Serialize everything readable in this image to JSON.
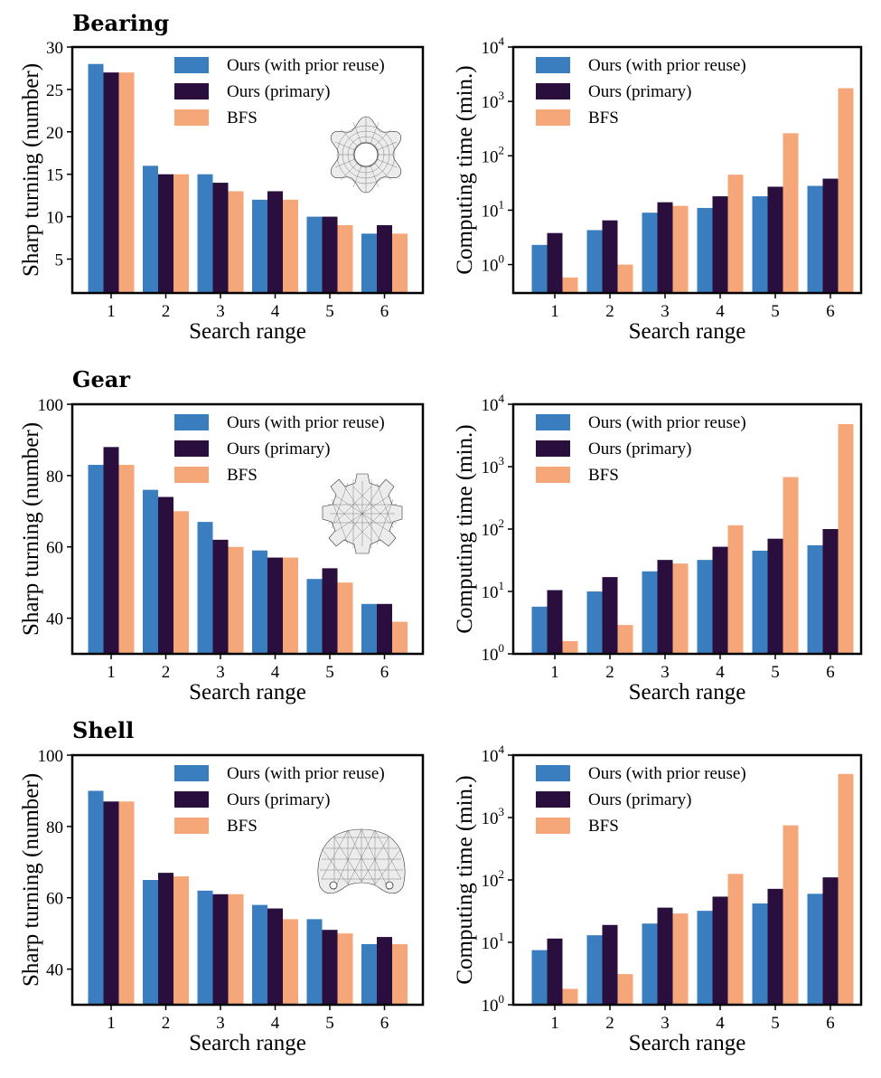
{
  "colors": {
    "ours_reuse": "#3a7ebf",
    "ours_primary": "#2a0f3e",
    "bfs": "#f5a77a"
  },
  "legend": [
    "Ours (with prior reuse)",
    "Ours (primary)",
    "BFS"
  ],
  "categories": [
    "1",
    "2",
    "3",
    "4",
    "5",
    "6"
  ],
  "rows": [
    {
      "title": "Bearing",
      "icon": "bearing-mesh-icon"
    },
    {
      "title": "Gear",
      "icon": "gear-mesh-icon"
    },
    {
      "title": "Shell",
      "icon": "shell-mesh-icon"
    }
  ],
  "chart_data": [
    {
      "type": "bar",
      "title": "Bearing",
      "xlabel": "Search range",
      "ylabel": "Sharp turning (number)",
      "scale": "linear",
      "ylim": [
        1,
        30
      ],
      "yticks": [
        5,
        10,
        15,
        20,
        25,
        30
      ],
      "ytick_labels": [
        "5",
        "10",
        "15",
        "20",
        "25",
        "30"
      ],
      "categories": [
        "1",
        "2",
        "3",
        "4",
        "5",
        "6"
      ],
      "series": [
        {
          "name": "Ours (with prior reuse)",
          "values": [
            28,
            16,
            15,
            12,
            10,
            8
          ]
        },
        {
          "name": "Ours (primary)",
          "values": [
            27,
            15,
            14,
            13,
            10,
            9
          ]
        },
        {
          "name": "BFS",
          "values": [
            27,
            15,
            13,
            12,
            9,
            8
          ]
        }
      ]
    },
    {
      "type": "bar",
      "title": "Bearing",
      "xlabel": "Search range",
      "ylabel": "Computing time (min.)",
      "scale": "log",
      "ylim": [
        0.3,
        10000
      ],
      "yticks": [
        1,
        10,
        100,
        1000,
        10000
      ],
      "ytick_base": [
        "10",
        "10",
        "10",
        "10",
        "10"
      ],
      "ytick_exp": [
        "0",
        "1",
        "2",
        "3",
        "4"
      ],
      "categories": [
        "1",
        "2",
        "3",
        "4",
        "5",
        "6"
      ],
      "series": [
        {
          "name": "Ours (with prior reuse)",
          "values": [
            2.3,
            4.3,
            9,
            11,
            18,
            28
          ]
        },
        {
          "name": "Ours (primary)",
          "values": [
            3.8,
            6.5,
            14,
            18,
            27,
            38
          ]
        },
        {
          "name": "BFS",
          "values": [
            0.58,
            1.0,
            12,
            45,
            260,
            1750
          ]
        }
      ]
    },
    {
      "type": "bar",
      "title": "Gear",
      "xlabel": "Search range",
      "ylabel": "Sharp turning (number)",
      "scale": "linear",
      "ylim": [
        30,
        100
      ],
      "yticks": [
        40,
        60,
        80,
        100
      ],
      "ytick_labels": [
        "40",
        "60",
        "80",
        "100"
      ],
      "categories": [
        "1",
        "2",
        "3",
        "4",
        "5",
        "6"
      ],
      "series": [
        {
          "name": "Ours (with prior reuse)",
          "values": [
            83,
            76,
            67,
            59,
            51,
            44
          ]
        },
        {
          "name": "Ours (primary)",
          "values": [
            88,
            74,
            62,
            57,
            54,
            44
          ]
        },
        {
          "name": "BFS",
          "values": [
            83,
            70,
            60,
            57,
            50,
            39
          ]
        }
      ]
    },
    {
      "type": "bar",
      "title": "Gear",
      "xlabel": "Search range",
      "ylabel": "Computing time (min.)",
      "scale": "log",
      "ylim": [
        1,
        10000
      ],
      "yticks": [
        1,
        10,
        100,
        1000,
        10000
      ],
      "ytick_base": [
        "10",
        "10",
        "10",
        "10",
        "10"
      ],
      "ytick_exp": [
        "0",
        "1",
        "2",
        "3",
        "4"
      ],
      "categories": [
        "1",
        "2",
        "3",
        "4",
        "5",
        "6"
      ],
      "series": [
        {
          "name": "Ours (with prior reuse)",
          "values": [
            5.7,
            10,
            21,
            32,
            45,
            55
          ]
        },
        {
          "name": "Ours (primary)",
          "values": [
            10.5,
            17,
            32,
            52,
            70,
            100
          ]
        },
        {
          "name": "BFS",
          "values": [
            1.6,
            2.9,
            28,
            115,
            680,
            4800
          ]
        }
      ]
    },
    {
      "type": "bar",
      "title": "Shell",
      "xlabel": "Search range",
      "ylabel": "Sharp turning (number)",
      "scale": "linear",
      "ylim": [
        30,
        100
      ],
      "yticks": [
        40,
        60,
        80,
        100
      ],
      "ytick_labels": [
        "40",
        "60",
        "80",
        "100"
      ],
      "categories": [
        "1",
        "2",
        "3",
        "4",
        "5",
        "6"
      ],
      "series": [
        {
          "name": "Ours (with prior reuse)",
          "values": [
            90,
            65,
            62,
            58,
            54,
            47
          ]
        },
        {
          "name": "Ours (primary)",
          "values": [
            87,
            67,
            61,
            57,
            51,
            49
          ]
        },
        {
          "name": "BFS",
          "values": [
            87,
            66,
            61,
            54,
            50,
            47
          ]
        }
      ]
    },
    {
      "type": "bar",
      "title": "Shell",
      "xlabel": "Search range",
      "ylabel": "Computing time (min.)",
      "scale": "log",
      "ylim": [
        1,
        10000
      ],
      "yticks": [
        1,
        10,
        100,
        1000,
        10000
      ],
      "ytick_base": [
        "10",
        "10",
        "10",
        "10",
        "10"
      ],
      "ytick_exp": [
        "0",
        "1",
        "2",
        "3",
        "4"
      ],
      "categories": [
        "1",
        "2",
        "3",
        "4",
        "5",
        "6"
      ],
      "series": [
        {
          "name": "Ours (with prior reuse)",
          "values": [
            7.5,
            13,
            20,
            32,
            42,
            60
          ]
        },
        {
          "name": "Ours (primary)",
          "values": [
            11.5,
            19,
            36,
            54,
            72,
            110
          ]
        },
        {
          "name": "BFS",
          "values": [
            1.8,
            3.1,
            29,
            125,
            750,
            5000
          ]
        }
      ]
    }
  ]
}
